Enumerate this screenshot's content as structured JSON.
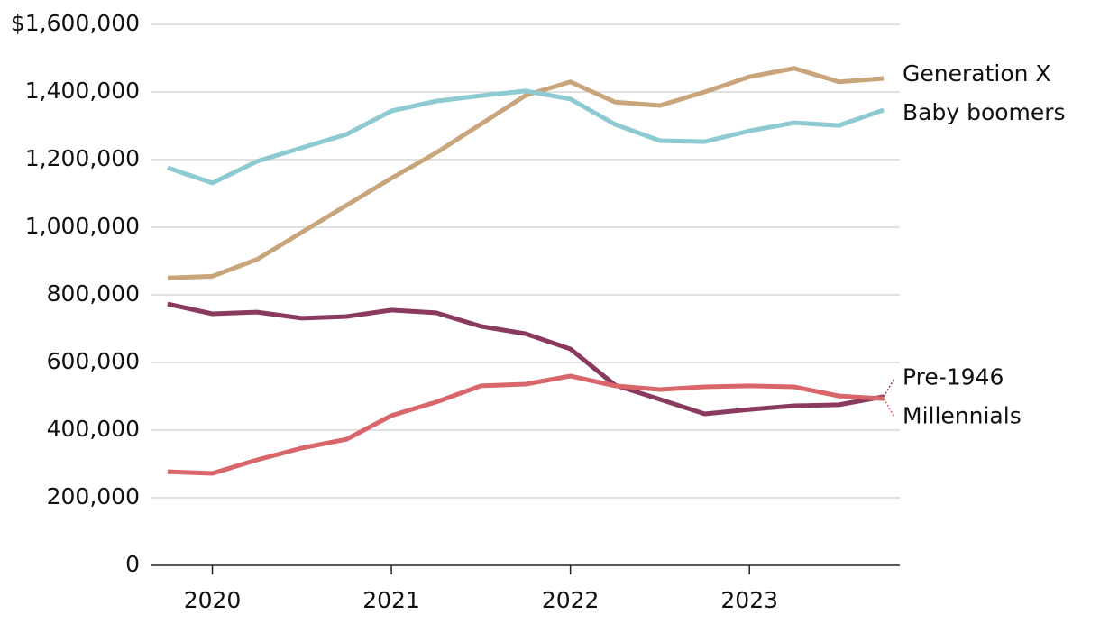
{
  "chart_data": {
    "type": "line",
    "x": [
      2019.75,
      2020,
      2020.25,
      2020.5,
      2020.75,
      2021,
      2021.25,
      2021.5,
      2021.75,
      2022,
      2022.25,
      2022.5,
      2022.75,
      2023,
      2023.25,
      2023.5,
      2023.75
    ],
    "xlim": [
      2019.66,
      2023.84
    ],
    "xticks": [
      2020,
      2021,
      2022,
      2023
    ],
    "ylim": [
      0,
      1600000
    ],
    "yticks": [
      0,
      {
        "value": 200000,
        "label": "200,000"
      },
      {
        "value": 400000,
        "label": "400,000"
      },
      {
        "value": 600000,
        "label": "600,000"
      },
      {
        "value": 800000,
        "label": "800,000"
      },
      {
        "value": 1000000,
        "label": "1,000,000"
      },
      {
        "value": 1200000,
        "label": "1,200,000"
      },
      {
        "value": 1400000,
        "label": "1,400,000"
      },
      {
        "value": 1600000,
        "label": "$1,600,000"
      }
    ],
    "grid": true,
    "series": [
      {
        "name": "Generation X",
        "color": "#c9a57c",
        "values": [
          850000,
          855000,
          905000,
          985000,
          1065000,
          1145000,
          1220000,
          1305000,
          1390000,
          1430000,
          1370000,
          1360000,
          1400000,
          1445000,
          1470000,
          1430000,
          1440000
        ]
      },
      {
        "name": "Baby boomers",
        "color": "#8ecad1",
        "values": [
          1176000,
          1131000,
          1195000,
          1235000,
          1275000,
          1344000,
          1373000,
          1389000,
          1403000,
          1379000,
          1304000,
          1256000,
          1253000,
          1285000,
          1309000,
          1301000,
          1347000
        ]
      },
      {
        "name": "Pre-1946",
        "color": "#8a3a5f",
        "values": [
          773000,
          744000,
          749000,
          731000,
          736000,
          755000,
          747000,
          707000,
          685000,
          640000,
          533000,
          491000,
          448000,
          461000,
          472000,
          475000,
          499000
        ]
      },
      {
        "name": "Millennials",
        "color": "#d9666b",
        "values": [
          277000,
          272000,
          312000,
          347000,
          373000,
          443000,
          483000,
          531000,
          536000,
          560000,
          531000,
          520000,
          528000,
          531000,
          528000,
          501000,
          493000
        ]
      }
    ]
  }
}
